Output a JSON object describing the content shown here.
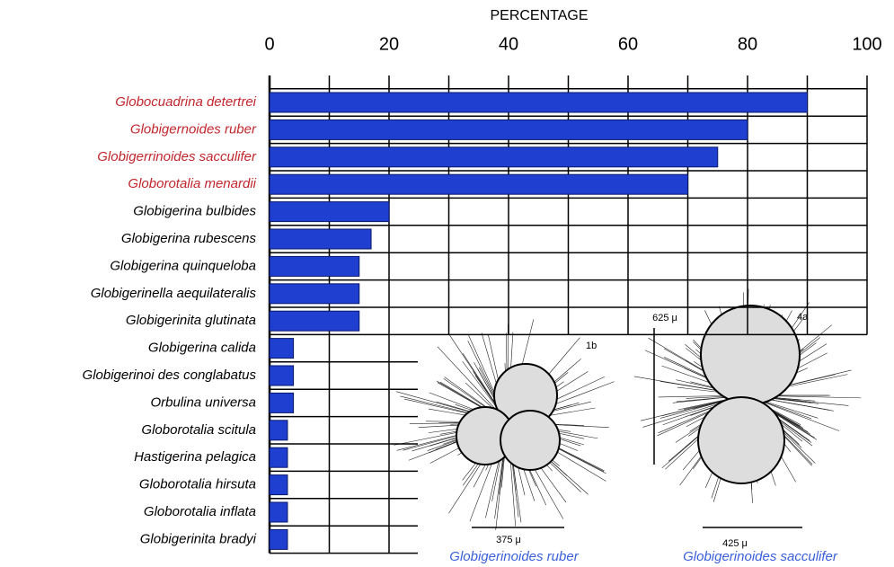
{
  "chart_data": {
    "type": "bar",
    "orientation": "horizontal",
    "x_label": "PERCENTAGE",
    "categories": [
      "Globocuadrina detertrei",
      "Globigernoides ruber",
      "Globigerrinoides sacculifer",
      "Globorotalia menardii",
      "Globigerina bulbides",
      "Globigerina rubescens",
      "Globigerina quinqueloba",
      "Globigerinella aequilateralis",
      "Globigerinita glutinata",
      "Globigerina calida",
      "Globigerinoi des conglabatus",
      "Orbulina universa",
      "Globorotalia scitula",
      "Hastigerina pelagica",
      "Globorotalia hirsuta",
      "Globorotalia inflata",
      "Globigerinita bradyi"
    ],
    "category_colors": [
      "#c1272d",
      "#c1272d",
      "#c1272d",
      "#c1272d",
      "#000000",
      "#000000",
      "#000000",
      "#000000",
      "#000000",
      "#000000",
      "#000000",
      "#000000",
      "#000000",
      "#000000",
      "#000000",
      "#000000",
      "#000000"
    ],
    "values": [
      90,
      80,
      75,
      70,
      20,
      17,
      15,
      15,
      15,
      4,
      4,
      4,
      3,
      3,
      3,
      3,
      3
    ],
    "color": "#1f3fd1",
    "xlim": [
      0,
      100
    ],
    "xticks": [
      0,
      20,
      40,
      60,
      80,
      100
    ],
    "xminor": [
      10,
      30,
      50,
      70,
      90
    ],
    "grid": true,
    "specimens": [
      {
        "figure": "1b",
        "scale": "375 μ",
        "name": "Globigerinoides ruber"
      },
      {
        "figure": "4a",
        "scale": "425 μ",
        "scale_vertical": "625 μ",
        "name": "Globigerinoides sacculifer"
      }
    ],
    "specimen_color": "#3a5fd8"
  }
}
